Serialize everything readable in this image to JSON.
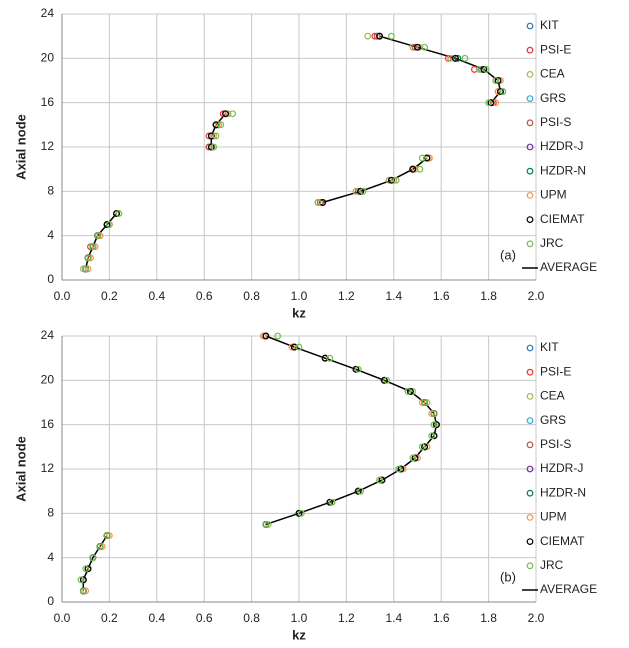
{
  "chart_data": [
    {
      "type": "scatter",
      "annotation": "(a)",
      "x_label": "kz",
      "y_label": "Axial node",
      "xlim": [
        0,
        2
      ],
      "xticks": [
        {
          "value": 0,
          "label": "0.0"
        },
        {
          "value": 0.2,
          "label": "0.2"
        },
        {
          "value": 0.4,
          "label": "0.4"
        },
        {
          "value": 0.6,
          "label": "0.6"
        },
        {
          "value": 0.8,
          "label": "0.8"
        },
        {
          "value": 1,
          "label": "1.0"
        },
        {
          "value": 1.2,
          "label": "1.2"
        },
        {
          "value": 1.4,
          "label": "1.4"
        },
        {
          "value": 1.6,
          "label": "1.6"
        },
        {
          "value": 1.8,
          "label": "1.8"
        },
        {
          "value": 2,
          "label": "2.0"
        }
      ],
      "ylim": [
        0,
        24
      ],
      "yticks": [
        0,
        4,
        8,
        12,
        16,
        20,
        24
      ],
      "grid": true,
      "y": [
        1,
        2,
        3,
        4,
        5,
        6,
        null,
        7,
        8,
        9,
        10,
        11,
        null,
        12,
        13,
        14,
        15,
        null,
        16,
        17,
        18,
        19,
        20,
        21,
        22
      ],
      "series": [
        {
          "name": "KIT",
          "color": "#2e75b6",
          "x": [
            0.1,
            0.11,
            0.13,
            0.15,
            0.19,
            0.23,
            null,
            1.1,
            1.26,
            1.4,
            1.48,
            1.54,
            null,
            0.63,
            0.64,
            0.65,
            0.69,
            null,
            1.81,
            1.86,
            1.84,
            1.77,
            1.66,
            1.5,
            1.33
          ]
        },
        {
          "name": "PSI-E",
          "color": "#ff2a2a",
          "x": [
            0.1,
            0.11,
            0.13,
            0.15,
            0.19,
            0.23,
            null,
            1.09,
            1.25,
            1.38,
            1.48,
            1.55,
            null,
            0.62,
            0.63,
            0.66,
            0.68,
            null,
            1.82,
            1.84,
            1.83,
            1.74,
            1.63,
            1.49,
            1.32
          ]
        },
        {
          "name": "CEA",
          "color": "#9bbb59",
          "x": [
            0.09,
            0.11,
            0.13,
            0.16,
            0.19,
            0.24,
            null,
            1.08,
            1.24,
            1.38,
            1.49,
            1.54,
            null,
            0.64,
            0.64,
            0.66,
            0.7,
            null,
            1.81,
            1.85,
            1.85,
            1.76,
            1.64,
            1.48,
            1.29
          ]
        },
        {
          "name": "GRS",
          "color": "#1fb4e0",
          "x": [
            0.1,
            0.11,
            0.13,
            0.15,
            0.19,
            0.23,
            null,
            1.1,
            1.26,
            1.39,
            1.48,
            1.54,
            null,
            0.63,
            0.63,
            0.65,
            0.69,
            null,
            1.81,
            1.85,
            1.84,
            1.78,
            1.66,
            1.5,
            1.34
          ]
        },
        {
          "name": "PSI-S",
          "color": "#c0504d",
          "x": [
            0.1,
            0.11,
            0.12,
            0.15,
            0.19,
            0.23,
            null,
            1.1,
            1.26,
            1.39,
            1.48,
            1.54,
            null,
            0.62,
            0.62,
            0.65,
            0.69,
            null,
            1.81,
            1.85,
            1.84,
            1.78,
            1.66,
            1.49,
            1.33
          ]
        },
        {
          "name": "HZDR-J",
          "color": "#7030a0",
          "x": [
            0.1,
            0.11,
            0.13,
            0.15,
            0.19,
            0.23,
            null,
            1.1,
            1.26,
            1.39,
            1.48,
            1.54,
            null,
            0.63,
            0.63,
            0.65,
            0.69,
            null,
            1.81,
            1.85,
            1.84,
            1.78,
            1.66,
            1.5,
            1.34
          ]
        },
        {
          "name": "HZDR-N",
          "color": "#00804f",
          "x": [
            0.1,
            0.11,
            0.13,
            0.15,
            0.19,
            0.23,
            null,
            1.1,
            1.26,
            1.39,
            1.48,
            1.54,
            null,
            0.63,
            0.63,
            0.65,
            0.69,
            null,
            1.81,
            1.85,
            1.84,
            1.78,
            1.67,
            1.5,
            1.34
          ]
        },
        {
          "name": "UPM",
          "color": "#f79646",
          "x": [
            0.11,
            0.12,
            0.14,
            0.16,
            0.2,
            0.23,
            null,
            1.1,
            1.27,
            1.4,
            1.49,
            1.55,
            null,
            0.63,
            0.64,
            0.66,
            0.7,
            null,
            1.83,
            1.84,
            1.85,
            1.78,
            1.66,
            1.51,
            1.34
          ]
        },
        {
          "name": "CIEMAT",
          "color": "#000000",
          "x": [
            0.1,
            0.11,
            0.13,
            0.15,
            0.19,
            0.23,
            null,
            1.1,
            1.26,
            1.39,
            1.48,
            1.54,
            null,
            0.63,
            0.63,
            0.65,
            0.69,
            null,
            1.81,
            1.85,
            1.84,
            1.78,
            1.66,
            1.5,
            1.34
          ]
        },
        {
          "name": "JRC",
          "color": "#70c050",
          "x": [
            0.1,
            0.11,
            0.13,
            0.15,
            0.2,
            0.24,
            null,
            1.08,
            1.27,
            1.41,
            1.51,
            1.52,
            null,
            0.64,
            0.65,
            0.67,
            0.72,
            null,
            1.8,
            1.86,
            1.83,
            1.79,
            1.7,
            1.53,
            1.39
          ]
        },
        {
          "name": "AVERAGE",
          "color": "#000000",
          "kind": "line",
          "x": [
            0.1,
            0.11,
            0.13,
            0.15,
            0.19,
            0.23,
            null,
            1.1,
            1.26,
            1.39,
            1.48,
            1.54,
            null,
            0.63,
            0.63,
            0.65,
            0.69,
            null,
            1.81,
            1.85,
            1.84,
            1.78,
            1.66,
            1.5,
            1.34
          ]
        }
      ]
    },
    {
      "type": "scatter",
      "annotation": "(b)",
      "x_label": "kz",
      "y_label": "Axial node",
      "xlim": [
        0,
        2
      ],
      "xticks": [
        {
          "value": 0,
          "label": "0.0"
        },
        {
          "value": 0.2,
          "label": "0.2"
        },
        {
          "value": 0.4,
          "label": "0.4"
        },
        {
          "value": 0.6,
          "label": "0.6"
        },
        {
          "value": 0.8,
          "label": "0.8"
        },
        {
          "value": 1,
          "label": "1.0"
        },
        {
          "value": 1.2,
          "label": "1.2"
        },
        {
          "value": 1.4,
          "label": "1.4"
        },
        {
          "value": 1.6,
          "label": "1.6"
        },
        {
          "value": 1.8,
          "label": "1.8"
        },
        {
          "value": 2,
          "label": "2.0"
        }
      ],
      "ylim": [
        0,
        24
      ],
      "yticks": [
        0,
        4,
        8,
        12,
        16,
        20,
        24
      ],
      "grid": true,
      "y": [
        1,
        2,
        3,
        4,
        5,
        6,
        null,
        7,
        8,
        9,
        10,
        11,
        12,
        13,
        14,
        15,
        16,
        17,
        18,
        19,
        20,
        21,
        22,
        23,
        24
      ],
      "series": [
        {
          "name": "KIT",
          "color": "#2e75b6",
          "x": [
            0.09,
            0.09,
            0.11,
            0.13,
            0.16,
            0.19,
            null,
            0.86,
            1.0,
            1.13,
            1.25,
            1.35,
            1.43,
            1.49,
            1.53,
            1.57,
            1.58,
            1.57,
            1.53,
            1.47,
            1.36,
            1.24,
            1.11,
            0.98,
            0.86
          ]
        },
        {
          "name": "PSI-E",
          "color": "#ff2a2a",
          "x": [
            0.09,
            0.09,
            0.11,
            0.13,
            0.16,
            0.19,
            null,
            0.86,
            1.0,
            1.13,
            1.25,
            1.35,
            1.43,
            1.49,
            1.53,
            1.57,
            1.58,
            1.57,
            1.53,
            1.47,
            1.36,
            1.24,
            1.11,
            0.98,
            0.85
          ]
        },
        {
          "name": "CEA",
          "color": "#9bbb59",
          "x": [
            0.09,
            0.09,
            0.11,
            0.13,
            0.16,
            0.19,
            null,
            0.87,
            1.0,
            1.14,
            1.25,
            1.34,
            1.43,
            1.49,
            1.53,
            1.57,
            1.58,
            1.57,
            1.54,
            1.48,
            1.36,
            1.24,
            1.11,
            0.98,
            0.86
          ]
        },
        {
          "name": "GRS",
          "color": "#1fb4e0",
          "x": [
            0.09,
            0.09,
            0.11,
            0.13,
            0.16,
            0.19,
            null,
            0.86,
            1.0,
            1.13,
            1.25,
            1.35,
            1.43,
            1.49,
            1.53,
            1.57,
            1.58,
            1.57,
            1.53,
            1.47,
            1.36,
            1.24,
            1.11,
            0.98,
            0.86
          ]
        },
        {
          "name": "PSI-S",
          "color": "#c0504d",
          "x": [
            0.09,
            0.09,
            0.11,
            0.13,
            0.16,
            0.19,
            null,
            0.86,
            1.0,
            1.13,
            1.25,
            1.35,
            1.43,
            1.49,
            1.53,
            1.57,
            1.58,
            1.57,
            1.53,
            1.47,
            1.36,
            1.24,
            1.11,
            0.98,
            0.86
          ]
        },
        {
          "name": "HZDR-J",
          "color": "#7030a0",
          "x": [
            0.09,
            0.09,
            0.11,
            0.13,
            0.16,
            0.19,
            null,
            0.86,
            1.0,
            1.13,
            1.25,
            1.35,
            1.43,
            1.49,
            1.53,
            1.57,
            1.58,
            1.57,
            1.53,
            1.47,
            1.36,
            1.24,
            1.11,
            0.98,
            0.86
          ]
        },
        {
          "name": "HZDR-N",
          "color": "#00804f",
          "x": [
            0.09,
            0.09,
            0.11,
            0.13,
            0.16,
            0.19,
            null,
            0.86,
            1.0,
            1.13,
            1.25,
            1.35,
            1.43,
            1.49,
            1.53,
            1.57,
            1.58,
            1.57,
            1.53,
            1.47,
            1.36,
            1.24,
            1.11,
            0.98,
            0.86
          ]
        },
        {
          "name": "UPM",
          "color": "#f79646",
          "x": [
            0.1,
            0.09,
            0.11,
            0.13,
            0.17,
            0.2,
            null,
            0.86,
            1.0,
            1.13,
            1.25,
            1.35,
            1.44,
            1.5,
            1.54,
            1.57,
            1.58,
            1.56,
            1.52,
            1.46,
            1.36,
            1.24,
            1.11,
            0.97,
            0.85
          ]
        },
        {
          "name": "CIEMAT",
          "color": "#000000",
          "x": [
            0.09,
            0.09,
            0.11,
            0.13,
            0.16,
            0.19,
            null,
            0.86,
            1.0,
            1.13,
            1.25,
            1.35,
            1.43,
            1.49,
            1.53,
            1.57,
            1.58,
            1.57,
            1.53,
            1.47,
            1.36,
            1.24,
            1.11,
            0.98,
            0.86
          ]
        },
        {
          "name": "JRC",
          "color": "#70c050",
          "x": [
            0.09,
            0.08,
            0.1,
            0.13,
            0.16,
            0.19,
            null,
            0.86,
            1.01,
            1.14,
            1.26,
            1.34,
            1.42,
            1.48,
            1.52,
            1.56,
            1.57,
            1.57,
            1.53,
            1.46,
            1.37,
            1.25,
            1.13,
            1.0,
            0.91
          ]
        },
        {
          "name": "AVERAGE",
          "color": "#000000",
          "kind": "line",
          "x": [
            0.09,
            0.09,
            0.11,
            0.13,
            0.16,
            0.19,
            null,
            0.86,
            1.0,
            1.13,
            1.25,
            1.35,
            1.43,
            1.49,
            1.53,
            1.57,
            1.58,
            1.57,
            1.53,
            1.47,
            1.36,
            1.24,
            1.11,
            0.98,
            0.86
          ]
        }
      ]
    }
  ]
}
